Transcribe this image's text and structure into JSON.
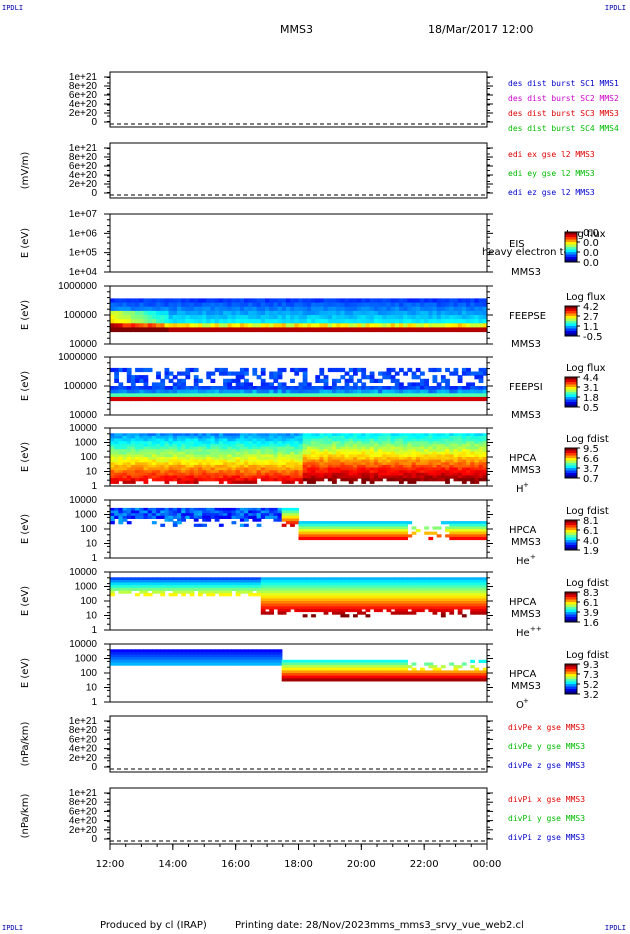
{
  "corners": {
    "tl": "IPDLI",
    "tr": "IPDLI",
    "bl": "IPDLI",
    "br": "IPDLI"
  },
  "header": {
    "spacecraft": "MMS3",
    "datetime": "18/Mar/2017 12:00"
  },
  "footer": {
    "produced": "Produced by cl (IRAP)",
    "printing": "Printing date: 28/Nov/2023",
    "script": "mms_mms3_srvy_vue_web2.cl"
  },
  "chart_data": [
    {
      "type": "line",
      "panel": "des-dist",
      "ylabel": "",
      "yticks": [
        "0",
        "2e+20",
        "4e+20",
        "6e+20",
        "8e+20",
        "1e+21"
      ],
      "legend": [
        {
          "text": "des dist burst SC1 MMS1",
          "color": "#0000cc"
        },
        {
          "text": "des dist burst SC2 MMS2",
          "color": "#cc00cc"
        },
        {
          "text": "des dist burst SC3 MMS3",
          "color": "#dd0000"
        },
        {
          "text": "des dist burst SC4 MMS4",
          "color": "#00bb00"
        }
      ]
    },
    {
      "type": "line",
      "panel": "edi",
      "ylabel": "(mV/m)",
      "yticks": [
        "0",
        "2e+20",
        "4e+20",
        "6e+20",
        "8e+20",
        "1e+21"
      ],
      "legend": [
        {
          "text": "edi ex gse l2 MMS3",
          "color": "#dd0000"
        },
        {
          "text": "edi ey gse l2 MMS3",
          "color": "#00bb00"
        },
        {
          "text": "edi ez gse l2 MMS3",
          "color": "#0000cc"
        }
      ]
    },
    {
      "type": "heatmap",
      "panel": "eis",
      "ylabel": "E (eV)",
      "yticks": [
        "1e+04",
        "1e+05",
        "1e+06",
        "1e+07"
      ],
      "instrument": "EIS",
      "sc": "MMS3",
      "overlap_label": "heavy electron to",
      "cbar_title": "Log flux",
      "cbar_ticks": [
        "0.0",
        "0.0",
        "0.0",
        "0.0"
      ]
    },
    {
      "type": "heatmap",
      "panel": "feepse",
      "ylabel": "E (eV)",
      "yticks": [
        "10000",
        "100000",
        "1000000"
      ],
      "instrument": "FEEPSE",
      "sc": "MMS3",
      "cbar_title": "Log flux",
      "cbar_ticks": [
        "4.2",
        "2.7",
        "1.1",
        "-0.5"
      ]
    },
    {
      "type": "heatmap",
      "panel": "feepsi",
      "ylabel": "E (eV)",
      "yticks": [
        "10000",
        "100000",
        "1000000"
      ],
      "instrument": "FEEPSI",
      "sc": "MMS3",
      "cbar_title": "Log flux",
      "cbar_ticks": [
        "4.4",
        "3.1",
        "1.8",
        "0.5"
      ]
    },
    {
      "type": "heatmap",
      "panel": "hpca-h",
      "ylabel": "E (eV)",
      "yticks": [
        "1",
        "10",
        "100",
        "1000",
        "10000"
      ],
      "instrument": "HPCA",
      "sc": "MMS3",
      "species": "H",
      "species_sup": "+",
      "cbar_title": "Log fdist",
      "cbar_ticks": [
        "9.5",
        "6.6",
        "3.7",
        "0.7"
      ]
    },
    {
      "type": "heatmap",
      "panel": "hpca-he",
      "ylabel": "E (eV)",
      "yticks": [
        "1",
        "10",
        "100",
        "1000",
        "10000"
      ],
      "instrument": "HPCA",
      "sc": "MMS3",
      "species": "He",
      "species_sup": "+",
      "cbar_title": "Log fdist",
      "cbar_ticks": [
        "8.1",
        "6.1",
        "4.0",
        "1.9"
      ]
    },
    {
      "type": "heatmap",
      "panel": "hpca-hepp",
      "ylabel": "E (eV)",
      "yticks": [
        "1",
        "10",
        "100",
        "1000",
        "10000"
      ],
      "instrument": "HPCA",
      "sc": "MMS3",
      "species": "He",
      "species_sup": "++",
      "cbar_title": "Log fdist",
      "cbar_ticks": [
        "8.3",
        "6.1",
        "3.9",
        "1.6"
      ]
    },
    {
      "type": "heatmap",
      "panel": "hpca-o",
      "ylabel": "E (eV)",
      "yticks": [
        "1",
        "10",
        "100",
        "1000",
        "10000"
      ],
      "instrument": "HPCA",
      "sc": "MMS3",
      "species": "O",
      "species_sup": "+",
      "cbar_title": "Log fdist",
      "cbar_ticks": [
        "9.3",
        "7.3",
        "5.2",
        "3.2"
      ]
    },
    {
      "type": "line",
      "panel": "divpe",
      "ylabel": "(nPa/km)",
      "yticks": [
        "0",
        "2e+20",
        "4e+20",
        "6e+20",
        "8e+20",
        "1e+21"
      ],
      "legend": [
        {
          "text": "divPe x gse MMS3",
          "color": "#dd0000"
        },
        {
          "text": "divPe y gse MMS3",
          "color": "#00bb00"
        },
        {
          "text": "divPe z gse MMS3",
          "color": "#0000cc"
        }
      ]
    },
    {
      "type": "line",
      "panel": "divpi",
      "ylabel": "(nPa/km)",
      "yticks": [
        "0",
        "2e+20",
        "4e+20",
        "6e+20",
        "8e+20",
        "1e+21"
      ],
      "legend": [
        {
          "text": "divPi x gse MMS3",
          "color": "#dd0000"
        },
        {
          "text": "divPi y gse MMS3",
          "color": "#00bb00"
        },
        {
          "text": "divPi z gse MMS3",
          "color": "#0000cc"
        }
      ]
    }
  ],
  "xaxis": {
    "ticks": [
      "12:00",
      "14:00",
      "16:00",
      "18:00",
      "20:00",
      "22:00",
      "00:00"
    ]
  }
}
